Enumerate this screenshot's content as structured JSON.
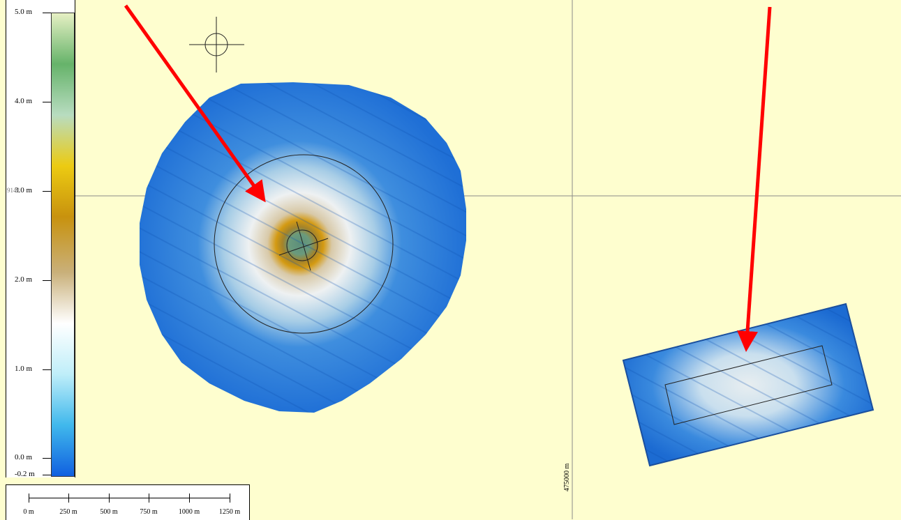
{
  "legend": {
    "labels": [
      "5.0 m",
      "4.0 m",
      "3.0 m",
      "2.0 m",
      "1.0 m",
      "0.0 m",
      "-0.2 m"
    ],
    "values": [
      5.0,
      4.0,
      3.0,
      2.0,
      1.0,
      0.0,
      -0.2
    ],
    "colors": [
      "#1060e0",
      "#40b8ec",
      "#bfeef9",
      "#ffffff",
      "#c9b07a",
      "#c8920e",
      "#eccb12",
      "#b8dcc0",
      "#66b36a",
      "#e6f0c4"
    ]
  },
  "scale_bar": {
    "labels": [
      "0 m",
      "250 m",
      "500 m",
      "750 m",
      "1000 m",
      "1250 m"
    ]
  },
  "grid": {
    "easting_label": "475000 m",
    "northing_label": "9142"
  },
  "colors": {
    "background": "#fefecf",
    "arrow": "#ff0000",
    "survey_blue": "#1f73d8"
  },
  "icons": {
    "crosshair": "crosshair-icon"
  }
}
